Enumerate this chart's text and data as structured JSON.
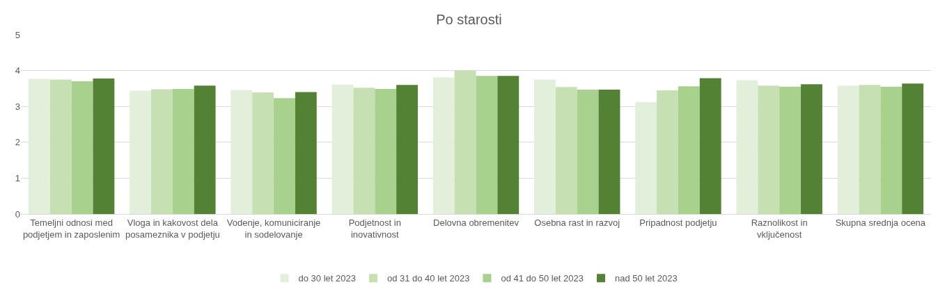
{
  "chart_data": {
    "type": "bar",
    "title": "Po starosti",
    "categories": [
      "Temeljni odnosi med podjetjem in zaposlenim",
      "Vloga in kakovost dela posameznika v podjetju",
      "Vodenje, komuniciranje in sodelovanje",
      "Podjetnost in inovativnost",
      "Delovna obremenitev",
      "Osebna rast in razvoj",
      "Pripadnost podjetju",
      "Raznolikost in vključenost",
      "Skupna srednja ocena"
    ],
    "series": [
      {
        "name": "do 30 let 2023",
        "color": "#e2efda",
        "values": [
          3.77,
          3.44,
          3.46,
          3.61,
          3.81,
          3.75,
          3.12,
          3.73,
          3.58
        ]
      },
      {
        "name": "od 31 do 40 let 2023",
        "color": "#c6e0b4",
        "values": [
          3.75,
          3.48,
          3.39,
          3.52,
          4.0,
          3.54,
          3.45,
          3.58,
          3.6
        ]
      },
      {
        "name": "od 41 do 50 let 2023",
        "color": "#a9d18e",
        "values": [
          3.7,
          3.49,
          3.23,
          3.49,
          3.85,
          3.47,
          3.56,
          3.55,
          3.55
        ]
      },
      {
        "name": "nad 50 let 2023",
        "color": "#548235",
        "values": [
          3.78,
          3.58,
          3.4,
          3.6,
          3.85,
          3.47,
          3.79,
          3.62,
          3.64
        ]
      }
    ],
    "ylim": [
      0,
      5
    ],
    "yticks": [
      0,
      1,
      2,
      3,
      4,
      5
    ],
    "grid": "y",
    "legend": "bottom"
  }
}
